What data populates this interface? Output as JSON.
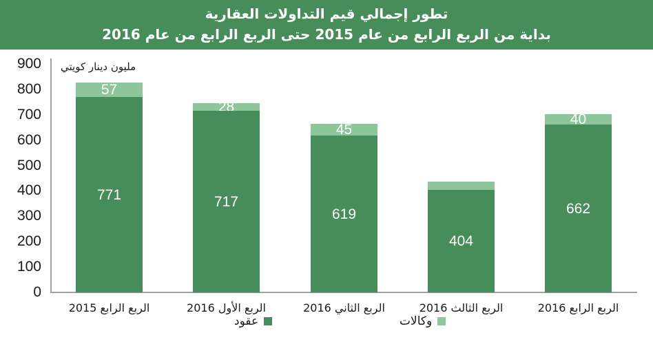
{
  "header": {
    "title": "تطور إجمالي قيم التداولات العقارية",
    "subtitle": "بداية من الربع الرابع من عام   2015 حتى الربع الرابع من عام   2016"
  },
  "colors": {
    "header_bg": "#478d5a",
    "contracts": "#478d5a",
    "agencies": "#8cc69a"
  },
  "chart_data": {
    "type": "bar",
    "stacked": true,
    "title": "تطور إجمالي قيم التداولات العقارية",
    "subtitle": "بداية من الربع الرابع من عام 2015 حتى الربع الرابع من عام 2016",
    "ylabel": "مليون دينار كويتي",
    "xlabel": "",
    "ylim": [
      0,
      900
    ],
    "yticks": [
      0,
      100,
      200,
      300,
      400,
      500,
      600,
      700,
      800,
      900
    ],
    "grid": false,
    "legend_position": "bottom",
    "categories": [
      "الربع الرابع 2015",
      "الربع الأول 2016",
      "الربع الثاني 2016",
      "الربع الثالث 2016",
      "الربع الرابع 2016"
    ],
    "series": [
      {
        "name": "عقود",
        "color": "#478d5a",
        "values": [
          771,
          717,
          619,
          404,
          662
        ],
        "labels": [
          "771",
          "717",
          "619",
          "404",
          "662"
        ]
      },
      {
        "name": "وكالات",
        "color": "#8cc69a",
        "values": [
          57,
          28,
          45,
          33,
          40
        ],
        "labels": [
          "57",
          "28",
          "45",
          "",
          "40"
        ]
      }
    ]
  },
  "axis": {
    "unit_label": "مليون دينار كويتي",
    "yticks": [
      "900",
      "800",
      "700",
      "600",
      "500",
      "400",
      "300",
      "200",
      "100",
      "0"
    ]
  },
  "legend": {
    "contracts": "عقود",
    "agencies": "وكالات"
  }
}
